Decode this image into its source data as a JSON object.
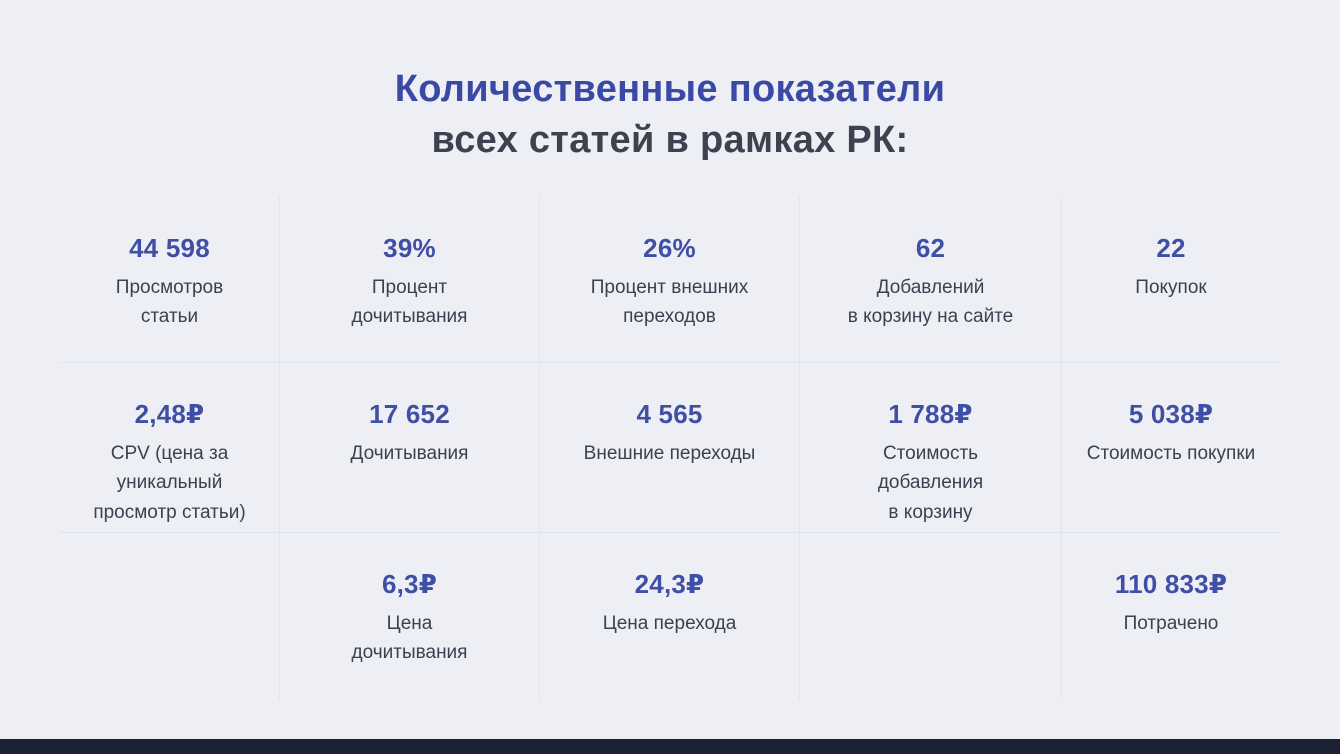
{
  "title": {
    "line1": "Количественные показатели",
    "line2": "всех статей в рамках РК:"
  },
  "colors": {
    "background": "#edeff5",
    "accent_blue": "#3f4fa5",
    "heading_dark": "#3e4250",
    "label_text": "#3b4150",
    "divider": "#e1e4ee",
    "bottom_bar": "#1b2234"
  },
  "grid": {
    "cells": [
      {
        "value": "44 598",
        "label": "Просмотров\nстатьи"
      },
      {
        "value": "39%",
        "label": "Процент\nдочитывания"
      },
      {
        "value": "26%",
        "label": "Процент внешних\nпереходов"
      },
      {
        "value": "62",
        "label": "Добавлений\nв корзину на сайте"
      },
      {
        "value": "22",
        "label": "Покупок"
      },
      {
        "value": "2,48₽",
        "label": "CPV (цена за\nуникальный\nпросмотр статьи)"
      },
      {
        "value": "17 652",
        "label": "Дочитывания"
      },
      {
        "value": "4 565",
        "label": "Внешние переходы"
      },
      {
        "value": "1 788₽",
        "label": "Стоимость\nдобавления\nв корзину"
      },
      {
        "value": "5 038₽",
        "label": "Стоимость покупки"
      },
      {
        "value": "",
        "label": ""
      },
      {
        "value": "6,3₽",
        "label": "Цена\nдочитывания"
      },
      {
        "value": "24,3₽",
        "label": "Цена перехода"
      },
      {
        "value": "",
        "label": ""
      },
      {
        "value": "110 833₽",
        "label": "Потрачено"
      }
    ]
  },
  "chart_data": {
    "type": "table",
    "title": "Количественные показатели всех статей в рамках РК:",
    "metrics": [
      {
        "label": "Просмотров статьи",
        "value": 44598,
        "display": "44 598"
      },
      {
        "label": "Процент дочитывания",
        "value": 39,
        "unit": "%",
        "display": "39%"
      },
      {
        "label": "Процент внешних переходов",
        "value": 26,
        "unit": "%",
        "display": "26%"
      },
      {
        "label": "Добавлений в корзину на сайте",
        "value": 62,
        "display": "62"
      },
      {
        "label": "Покупок",
        "value": 22,
        "display": "22"
      },
      {
        "label": "CPV (цена за уникальный просмотр статьи)",
        "value": 2.48,
        "unit": "₽",
        "display": "2,48₽"
      },
      {
        "label": "Дочитывания",
        "value": 17652,
        "display": "17 652"
      },
      {
        "label": "Внешние переходы",
        "value": 4565,
        "display": "4 565"
      },
      {
        "label": "Стоимость добавления в корзину",
        "value": 1788,
        "unit": "₽",
        "display": "1 788₽"
      },
      {
        "label": "Стоимость покупки",
        "value": 5038,
        "unit": "₽",
        "display": "5 038₽"
      },
      {
        "label": "Цена дочитывания",
        "value": 6.3,
        "unit": "₽",
        "display": "6,3₽"
      },
      {
        "label": "Цена перехода",
        "value": 24.3,
        "unit": "₽",
        "display": "24,3₽"
      },
      {
        "label": "Потрачено",
        "value": 110833,
        "unit": "₽",
        "display": "110 833₽"
      }
    ]
  }
}
